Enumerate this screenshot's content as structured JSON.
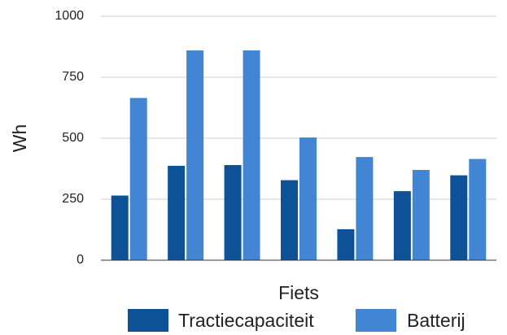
{
  "chart_data": {
    "type": "bar",
    "xlabel": "Fiets",
    "ylabel": "Wh",
    "ylim": [
      0,
      1000
    ],
    "yticks": [
      "0",
      "250",
      "500",
      "750",
      "1000"
    ],
    "categories": [
      "",
      "",
      "",
      "",
      "",
      "",
      ""
    ],
    "series": [
      {
        "name": "Tractiecapaciteit",
        "color": "#0d5296",
        "values": [
          265,
          387,
          390,
          328,
          127,
          283,
          348
        ]
      },
      {
        "name": "Batterij",
        "color": "#4286d3",
        "values": [
          665,
          860,
          860,
          503,
          423,
          370,
          415
        ]
      }
    ],
    "grid": true,
    "legend_position": "bottom"
  }
}
